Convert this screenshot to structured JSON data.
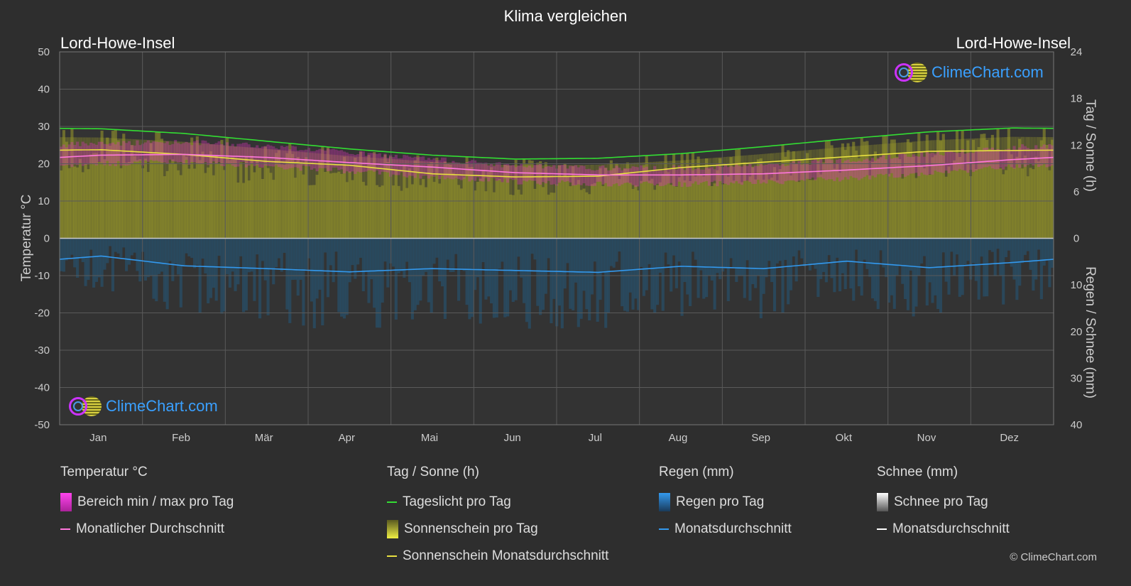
{
  "title": "Klima vergleichen",
  "location_left": "Lord-Howe-Insel",
  "location_right": "Lord-Howe-Insel",
  "logo_text": "ClimeChart.com",
  "copyright": "© ClimeChart.com",
  "legend": {
    "temperature": {
      "heading": "Temperatur °C",
      "range_label": "Bereich min / max pro Tag",
      "avg_label": "Monatlicher Durchschnitt"
    },
    "sun": {
      "heading": "Tag / Sonne (h)",
      "daylight_label": "Tageslicht pro Tag",
      "sunshine_label": "Sonnenschein pro Tag",
      "sunshine_avg_label": "Sonnenschein Monatsdurchschnitt"
    },
    "rain": {
      "heading": "Regen (mm)",
      "per_day_label": "Regen pro Tag",
      "avg_label": "Monatsdurchschnitt"
    },
    "snow": {
      "heading": "Schnee (mm)",
      "per_day_label": "Schnee pro Tag",
      "avg_label": "Monatsdurchschnitt"
    }
  },
  "colors": {
    "background": "#2e2e2e",
    "grid": "#5a5a5a",
    "daylight": "#33dd33",
    "sunshine_fill": "#9a9a2a",
    "sunshine_avg": "#e8e040",
    "temp_avg": "#ff77dd",
    "temp_range": "#dd33bb",
    "rain_bars": "#1f5f8a",
    "rain_avg": "#3399ee",
    "snow_avg": "#ffffff"
  },
  "chart_data": {
    "type": "line",
    "months": [
      "Jan",
      "Feb",
      "Mär",
      "Apr",
      "Mai",
      "Jun",
      "Jul",
      "Aug",
      "Sep",
      "Okt",
      "Nov",
      "Dez"
    ],
    "left_axis": {
      "label": "Temperatur °C",
      "min": -50,
      "max": 50,
      "ticks": [
        50,
        40,
        30,
        20,
        10,
        0,
        -10,
        -20,
        -30,
        -40,
        -50
      ]
    },
    "right_axis_top": {
      "label": "Tag / Sonne (h)",
      "min": 0,
      "max": 24,
      "ticks": [
        24,
        18,
        12,
        6,
        0
      ]
    },
    "right_axis_bottom": {
      "label": "Regen / Schnee (mm)",
      "min": 0,
      "max": 40,
      "ticks": [
        0,
        10,
        20,
        30,
        40
      ]
    },
    "series": [
      {
        "name": "Tageslicht pro Tag",
        "axis": "hours",
        "values": [
          14.1,
          13.5,
          12.5,
          11.5,
          10.7,
          10.2,
          10.3,
          10.9,
          11.8,
          12.8,
          13.7,
          14.2
        ]
      },
      {
        "name": "Sonnenschein Monatsdurchschnitt",
        "axis": "hours",
        "values": [
          11.4,
          10.8,
          9.9,
          9.4,
          8.3,
          7.9,
          8.0,
          9.1,
          9.8,
          10.5,
          11.2,
          11.3
        ]
      },
      {
        "name": "Monatlicher Durchschnitt",
        "axis": "temperature",
        "values": [
          22.3,
          22.5,
          21.7,
          20.3,
          19.1,
          17.6,
          17.0,
          17.0,
          17.3,
          18.3,
          19.5,
          21.1
        ]
      },
      {
        "name": "Bereich min / max pro Tag (max)",
        "axis": "temperature",
        "values": [
          25.5,
          25.8,
          24.8,
          23.0,
          21.2,
          19.5,
          18.8,
          18.9,
          19.7,
          21.0,
          22.6,
          24.4
        ]
      },
      {
        "name": "Bereich min / max pro Tag (min)",
        "axis": "temperature",
        "values": [
          20.0,
          20.5,
          19.5,
          18.0,
          16.5,
          15.2,
          14.5,
          14.5,
          15.0,
          16.0,
          17.5,
          19.2
        ]
      },
      {
        "name": "Regen Monatsdurchschnitt",
        "axis": "rain",
        "values": [
          3.8,
          5.9,
          6.5,
          7.2,
          6.5,
          6.9,
          7.3,
          6.0,
          6.5,
          4.9,
          6.3,
          5.2
        ]
      }
    ],
    "grid": true,
    "legend_position": "bottom"
  }
}
